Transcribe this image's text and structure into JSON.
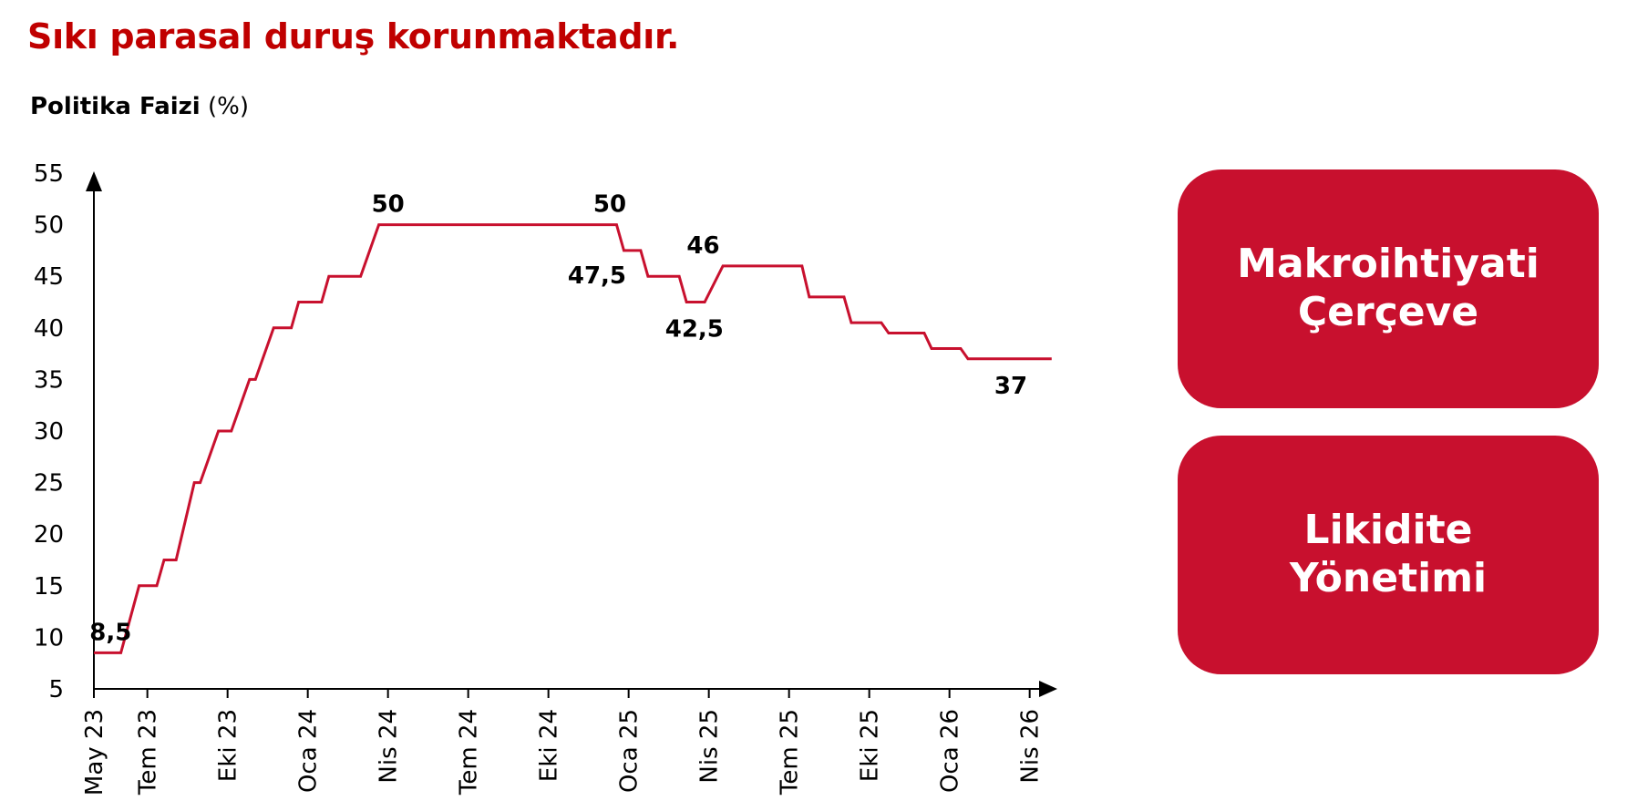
{
  "page": {
    "title": "Sıkı parasal duruş korunmaktadır."
  },
  "chart_title": {
    "bold": "Politika Faizi",
    "unit": " (%)"
  },
  "buttons": [
    {
      "line1": "Makroihtiyati",
      "line2": "Çerçeve"
    },
    {
      "line1": "Likidite",
      "line2": "Yönetimi"
    }
  ],
  "colors": {
    "title": "#c00000",
    "line": "#c8102e",
    "button_bg": "#c8102e",
    "button_text": "#ffffff"
  },
  "chart_data": {
    "type": "line",
    "step": true,
    "title": "Politika Faizi (%)",
    "xlabel": "",
    "ylabel": "",
    "ylim": [
      5,
      55
    ],
    "yticks": [
      5,
      10,
      15,
      20,
      25,
      30,
      35,
      40,
      45,
      50,
      55
    ],
    "xlim": [
      "2023-05",
      "2026-05"
    ],
    "xticks": [
      {
        "label": "May 23",
        "date": "2023-05"
      },
      {
        "label": "Tem 23",
        "date": "2023-07"
      },
      {
        "label": "Eki 23",
        "date": "2023-10"
      },
      {
        "label": "Oca 24",
        "date": "2024-01"
      },
      {
        "label": "Nis 24",
        "date": "2024-04"
      },
      {
        "label": "Tem 24",
        "date": "2024-07"
      },
      {
        "label": "Eki 24",
        "date": "2024-10"
      },
      {
        "label": "Oca 25",
        "date": "2025-01"
      },
      {
        "label": "Nis 25",
        "date": "2025-04"
      },
      {
        "label": "Tem 25",
        "date": "2025-07"
      },
      {
        "label": "Eki 25",
        "date": "2025-10"
      },
      {
        "label": "Oca 26",
        "date": "2026-01"
      },
      {
        "label": "Nis 26",
        "date": "2026-04"
      }
    ],
    "grid": false,
    "legend": "none",
    "series": [
      {
        "points": [
          {
            "date": "2023-05-01",
            "value": 8.5
          },
          {
            "date": "2023-06-22",
            "value": 15
          },
          {
            "date": "2023-07-20",
            "value": 17.5
          },
          {
            "date": "2023-08-24",
            "value": 25
          },
          {
            "date": "2023-09-21",
            "value": 30
          },
          {
            "date": "2023-10-26",
            "value": 35
          },
          {
            "date": "2023-11-23",
            "value": 40
          },
          {
            "date": "2023-12-21",
            "value": 42.5
          },
          {
            "date": "2024-01-25",
            "value": 45
          },
          {
            "date": "2024-03-21",
            "value": 50
          },
          {
            "date": "2024-12-26",
            "value": 47.5
          },
          {
            "date": "2025-01-23",
            "value": 45
          },
          {
            "date": "2025-03-06",
            "value": 42.5
          },
          {
            "date": "2025-04-17",
            "value": 46
          },
          {
            "date": "2025-07-24",
            "value": 43
          },
          {
            "date": "2025-09-11",
            "value": 40.5
          },
          {
            "date": "2025-10-23",
            "value": 39.5
          },
          {
            "date": "2025-12-11",
            "value": 38
          },
          {
            "date": "2026-01-22",
            "value": 37
          },
          {
            "date": "2026-04-26",
            "value": 37
          }
        ]
      }
    ],
    "annotations": [
      {
        "text": "8,5",
        "date": "2023-05-20",
        "value": 8.5,
        "pos": "above"
      },
      {
        "text": "50",
        "date": "2024-04-01",
        "value": 50,
        "pos": "above"
      },
      {
        "text": "50",
        "date": "2024-12-10",
        "value": 50,
        "pos": "above"
      },
      {
        "text": "47,5",
        "date": "2024-12-10",
        "value": 47.5,
        "pos": "below-left"
      },
      {
        "text": "46",
        "date": "2025-03-25",
        "value": 46,
        "pos": "above"
      },
      {
        "text": "42,5",
        "date": "2025-03-15",
        "value": 42.5,
        "pos": "below"
      },
      {
        "text": "37",
        "date": "2026-03-10",
        "value": 37,
        "pos": "below"
      }
    ]
  }
}
